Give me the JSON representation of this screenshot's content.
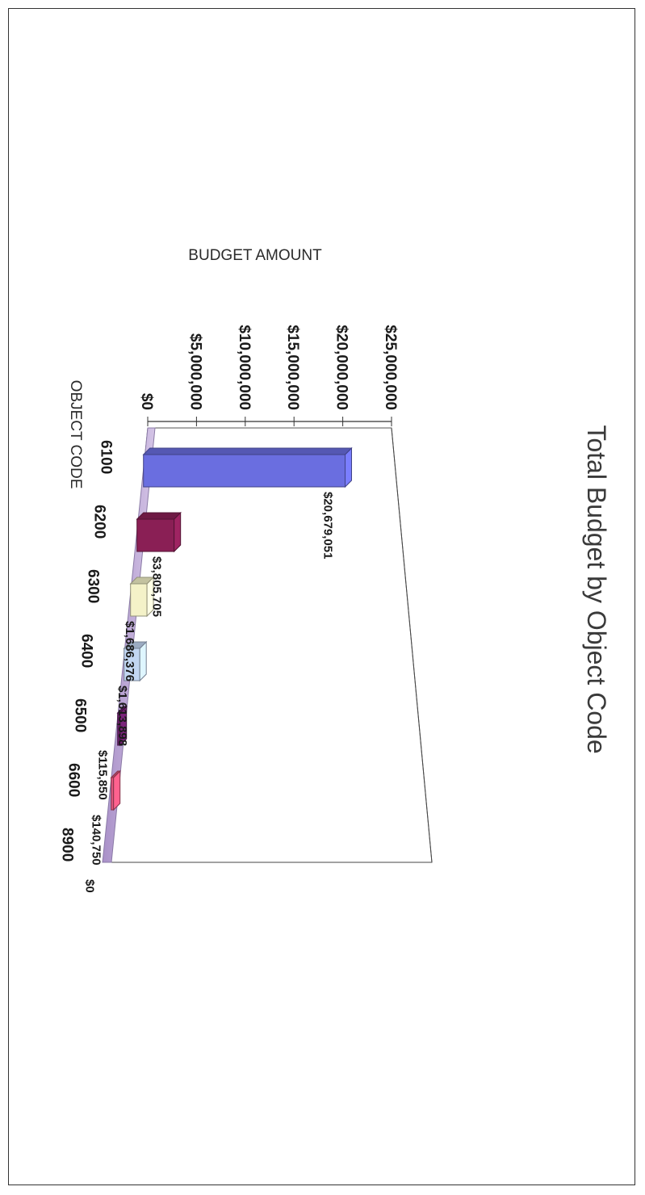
{
  "chart_data": {
    "type": "bar",
    "title": "Total Budget by Object Code",
    "xlabel": "OBJECT CODE",
    "ylabel": "BUDGET AMOUNT",
    "categories": [
      "6100",
      "6200",
      "6300",
      "6400",
      "6500",
      "6600",
      "8900"
    ],
    "values": [
      20679051,
      3805705,
      1686376,
      1613898,
      115850,
      140750,
      0
    ],
    "data_labels": [
      "$20,679,051",
      "$3,805,705",
      "$1,686,376",
      "$1,613,898",
      "$115,850",
      "$140,750",
      "$0"
    ],
    "y_ticks": [
      "$0",
      "$5,000,000",
      "$10,000,000",
      "$15,000,000",
      "$20,000,000",
      "$25,000,000"
    ],
    "ylim": [
      0,
      25000000
    ],
    "orientation": "rotated 90 degrees clockwise",
    "style": "3d",
    "colors": [
      "#6a6ee0",
      "#8a1f55",
      "#f4f2c8",
      "#c2d6f2",
      "#6b1f6b",
      "#e0557c",
      "#d0603a"
    ]
  }
}
